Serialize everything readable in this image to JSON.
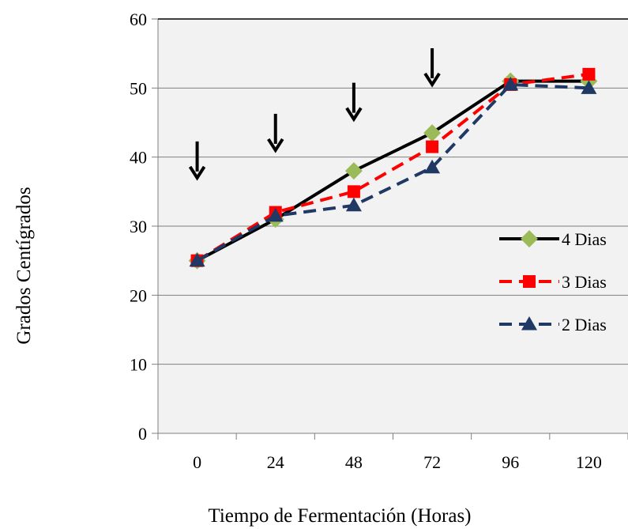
{
  "chart_data": {
    "type": "line",
    "title": "",
    "xlabel": "Tiempo de Fermentación (Horas)",
    "ylabel": "Grados Centígrados",
    "categories": [
      "0",
      "24",
      "48",
      "72",
      "96",
      "120"
    ],
    "ylim": [
      0,
      60
    ],
    "yticks": [
      "0",
      "10",
      "20",
      "30",
      "40",
      "50",
      "60"
    ],
    "grid": "horizontal",
    "plot_background": "#f2f2f2",
    "legend_position": "right",
    "series": [
      {
        "name": "4 Dias",
        "values": [
          25,
          31,
          38,
          43.5,
          51,
          51
        ],
        "color": "#000000",
        "marker_color": "#9bbb59",
        "marker": "diamond",
        "dash": "solid"
      },
      {
        "name": "3 Dias",
        "values": [
          25,
          32,
          35,
          41.5,
          50.5,
          52
        ],
        "color": "#ff0000",
        "marker_color": "#ff0000",
        "marker": "square",
        "dash": "dashed"
      },
      {
        "name": "2 Dias",
        "values": [
          25,
          31.5,
          33,
          38.5,
          50.5,
          50
        ],
        "color": "#1f3864",
        "marker_color": "#1f3864",
        "marker": "triangle",
        "dash": "dashed"
      }
    ],
    "annotations": {
      "type": "down-arrow",
      "categories": [
        "0",
        "24",
        "48",
        "72"
      ],
      "values": [
        37,
        41,
        45.5,
        50.5
      ]
    }
  }
}
